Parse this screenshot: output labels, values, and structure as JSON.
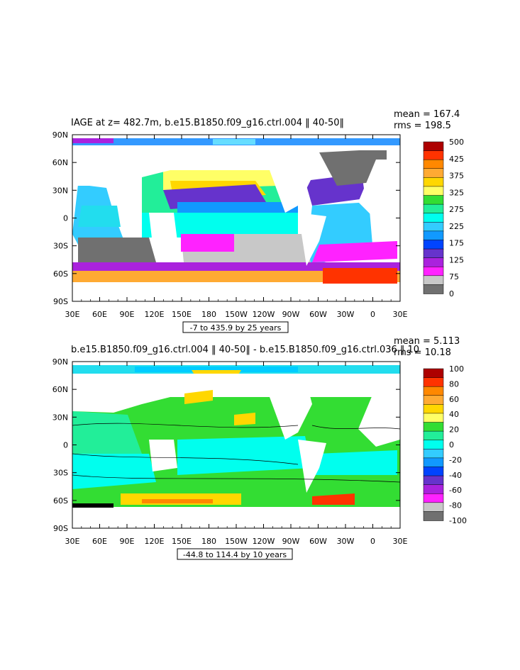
{
  "chart_data": [
    {
      "type": "heatmap",
      "title": "IAGE at z= 482.7m, b.e15.B1850.f09_g16.ctrl.004 ‖ 40-50‖",
      "stats": {
        "mean": "mean = 167.4",
        "rms": "rms = 198.5"
      },
      "x_ticks": [
        "30E",
        "60E",
        "90E",
        "120E",
        "150E",
        "180",
        "150W",
        "120W",
        "90W",
        "60W",
        "30W",
        "0",
        "30E"
      ],
      "y_ticks": [
        "90N",
        "60N",
        "30N",
        "0",
        "30S",
        "60S",
        "90S"
      ],
      "xlim": [
        30,
        390
      ],
      "ylim": [
        -90,
        90
      ],
      "range_label": "-7 to 435.9 by 25 years",
      "colorbar": {
        "labels": [
          "500",
          "425",
          "375",
          "325",
          "275",
          "225",
          "175",
          "125",
          "75",
          "0"
        ],
        "colors": [
          "#ad0000",
          "#ff3300",
          "#ff8800",
          "#ffaa33",
          "#ffd700",
          "#ffff66",
          "#33dd33",
          "#22ee99",
          "#00ffee",
          "#33ccff",
          "#1199ff",
          "#0044ff",
          "#6633cc",
          "#aa22dd",
          "#ff22ff",
          "#c8c8c8",
          "#707070"
        ]
      }
    },
    {
      "type": "heatmap",
      "title": "b.e15.B1850.f09_g16.ctrl.004 ‖ 40-50‖ - b.e15.B1850.f09_g16.ctrl.036 ‖ 10",
      "stats": {
        "mean": "mean = 5.113",
        "rms": "rms = 10.18"
      },
      "x_ticks": [
        "30E",
        "60E",
        "90E",
        "120E",
        "150E",
        "180",
        "150W",
        "120W",
        "90W",
        "60W",
        "30W",
        "0",
        "30E"
      ],
      "y_ticks": [
        "90N",
        "60N",
        "30N",
        "0",
        "30S",
        "60S",
        "90S"
      ],
      "xlim": [
        30,
        390
      ],
      "ylim": [
        -90,
        90
      ],
      "range_label": "-44.8 to 114.4 by 10 years",
      "colorbar": {
        "labels": [
          "100",
          "80",
          "60",
          "40",
          "20",
          "0",
          "-20",
          "-40",
          "-60",
          "-80",
          "-100"
        ],
        "colors": [
          "#ad0000",
          "#ff3300",
          "#ff8800",
          "#ffaa33",
          "#ffd700",
          "#ffff66",
          "#33dd33",
          "#22ee99",
          "#00ffee",
          "#33ccff",
          "#1199ff",
          "#0044ff",
          "#6633cc",
          "#aa22dd",
          "#ff22ff",
          "#c8c8c8",
          "#707070"
        ]
      }
    }
  ]
}
